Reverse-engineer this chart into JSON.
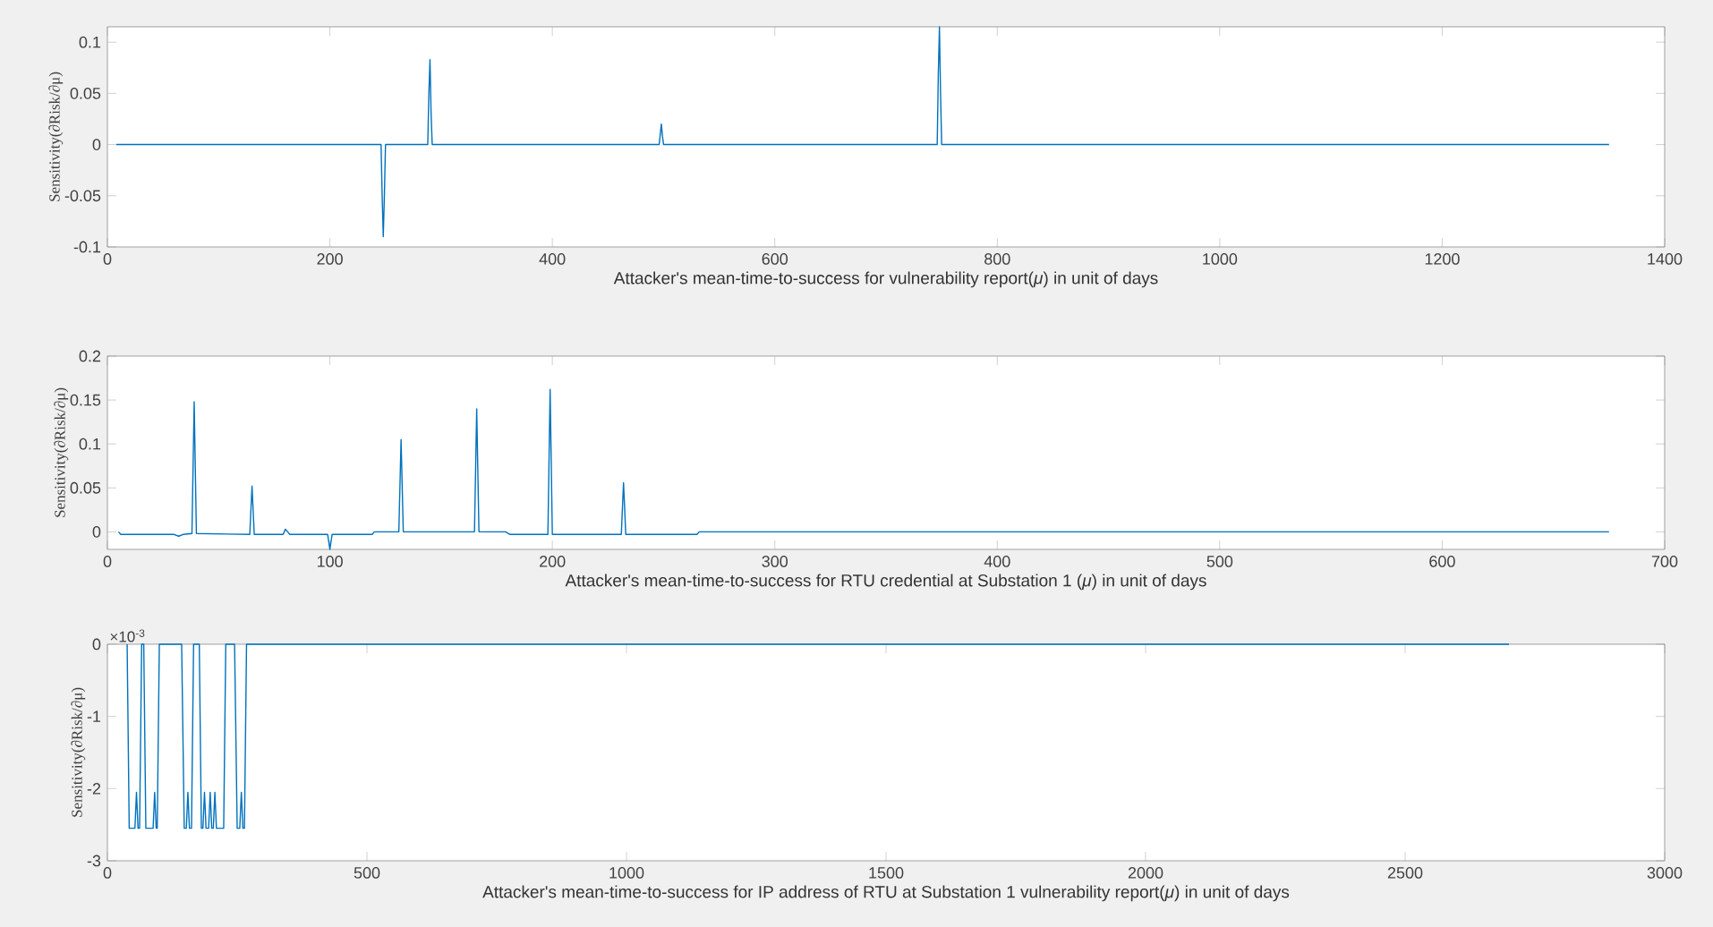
{
  "chart_data": [
    {
      "type": "line",
      "xlabel": "Attacker's mean-time-to-success for vulnerability report(*μ*) in unit of days",
      "ylabel": "Sensitivity(∂Risk/∂μ)",
      "color": "#0072bd",
      "grid": false,
      "x": [
        8,
        246,
        247,
        248,
        249,
        250,
        288,
        289,
        290,
        291,
        292,
        496,
        497,
        498,
        499,
        500,
        746,
        747,
        748,
        749,
        750,
        1350
      ],
      "values": [
        0,
        0,
        -0.05,
        -0.09,
        -0.05,
        0,
        0,
        0.05,
        0.083,
        0.03,
        0,
        0,
        0.01,
        0.02,
        0.008,
        0,
        0,
        0.07,
        0.115,
        0.05,
        0,
        0
      ],
      "xlim": [
        0,
        1400
      ],
      "ylim": [
        -0.1,
        0.115
      ],
      "xticks": [
        0,
        200,
        400,
        600,
        800,
        1000,
        1200,
        1400
      ],
      "yticks": [
        -0.1,
        -0.05,
        0,
        0.05,
        0.1
      ]
    },
    {
      "type": "line",
      "xlabel": "Attacker's mean-time-to-success for RTU credential at Substation 1 (*μ*) in unit of days",
      "ylabel": "Sensitivity(∂Risk/∂μ)",
      "color": "#0072bd",
      "grid": false,
      "x": [
        5,
        6,
        30,
        32,
        34,
        38,
        39,
        40,
        64,
        65,
        66,
        79,
        80,
        82,
        99,
        100,
        101,
        119,
        120,
        131,
        132,
        133,
        165,
        166,
        167,
        179,
        181,
        198,
        199,
        200,
        231,
        232,
        233,
        265,
        266,
        675
      ],
      "values": [
        0,
        -0.003,
        -0.003,
        -0.005,
        -0.003,
        -0.002,
        0.148,
        -0.002,
        -0.003,
        0.052,
        -0.003,
        -0.003,
        0.003,
        -0.003,
        -0.003,
        -0.02,
        -0.003,
        -0.003,
        0,
        0,
        0.105,
        0,
        0,
        0.14,
        0,
        0,
        -0.003,
        -0.003,
        0.162,
        -0.003,
        -0.003,
        0.056,
        -0.003,
        -0.003,
        0,
        0
      ],
      "xlim": [
        0,
        700
      ],
      "ylim": [
        -0.02,
        0.2
      ],
      "xticks": [
        0,
        100,
        200,
        300,
        400,
        500,
        600,
        700
      ],
      "yticks": [
        0,
        0.05,
        0.1,
        0.15,
        0.2
      ]
    },
    {
      "type": "line",
      "xlabel": "Attacker's mean-time-to-success for IP address of RTU at Substation 1 vulnerability report(*μ*) in unit of days",
      "ylabel": "Sensitivity(∂Risk/∂μ)",
      "color": "#0072bd",
      "grid": false,
      "annotations": [
        "×10$^{-3}$"
      ],
      "x": [
        38,
        42,
        53,
        56,
        59,
        62,
        66,
        70,
        74,
        88,
        91,
        94,
        96,
        100,
        143,
        148,
        152,
        155,
        158,
        162,
        166,
        177,
        181,
        184,
        187,
        190,
        195,
        198,
        201,
        204,
        207,
        210,
        224,
        228,
        245,
        250,
        255,
        258,
        261,
        264,
        268,
        2700
      ],
      "values": [
        0,
        -2.55,
        -2.55,
        -2.05,
        -2.55,
        -2.55,
        0,
        0,
        -2.55,
        -2.55,
        -2.05,
        -2.55,
        -2.55,
        0,
        0,
        -2.55,
        -2.55,
        -2.05,
        -2.55,
        -2.55,
        0,
        0,
        -2.55,
        -2.55,
        -2.05,
        -2.55,
        -2.55,
        -2.05,
        -2.55,
        -2.55,
        -2.05,
        -2.55,
        -2.55,
        0,
        0,
        -2.55,
        -2.55,
        -2.05,
        -2.55,
        -2.55,
        0,
        0
      ],
      "xlim": [
        0,
        3000
      ],
      "ylim": [
        -3,
        0
      ],
      "xticks": [
        0,
        500,
        1000,
        1500,
        2000,
        2500,
        3000
      ],
      "yticks": [
        -3,
        -2,
        -1,
        0
      ]
    }
  ]
}
